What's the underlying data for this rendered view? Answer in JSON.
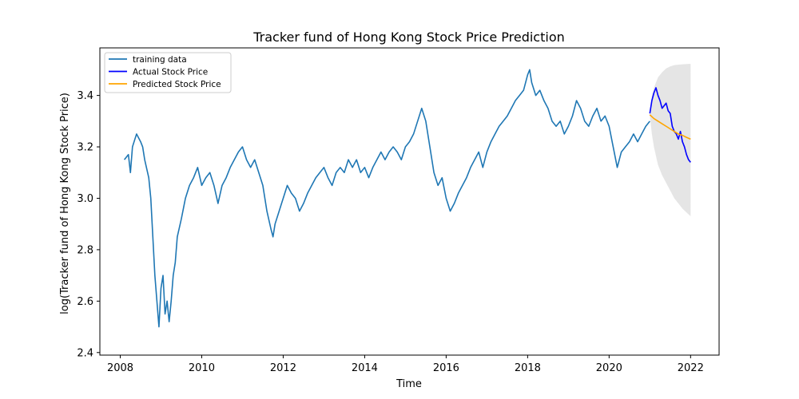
{
  "chart_data": {
    "type": "line",
    "title": "Tracker fund of Hong Kong Stock Price Prediction",
    "xlabel": "Time",
    "ylabel": "log(Tracker fund of Hong Kong Stock Price)",
    "xlim": [
      2007.5,
      2022.7
    ],
    "ylim": [
      2.39,
      3.585
    ],
    "x_ticks": [
      2008,
      2010,
      2012,
      2014,
      2016,
      2018,
      2020,
      2022
    ],
    "y_ticks": [
      2.4,
      2.6,
      2.8,
      3.0,
      3.2,
      3.4
    ],
    "y_tick_labels": [
      "2.4",
      "2.6",
      "2.8",
      "3.0",
      "3.2",
      "3.4"
    ],
    "grid": false,
    "legend_position": "top-left",
    "colors": {
      "training": "#1f77b4",
      "actual": "#0000ff",
      "predicted": "#ffa500",
      "confidence": "#d3d3d3"
    },
    "series": [
      {
        "name": "training data",
        "x": [
          2008.1,
          2008.2,
          2008.25,
          2008.3,
          2008.4,
          2008.5,
          2008.55,
          2008.6,
          2008.7,
          2008.75,
          2008.8,
          2008.85,
          2008.9,
          2008.95,
          2009.0,
          2009.05,
          2009.1,
          2009.15,
          2009.2,
          2009.25,
          2009.3,
          2009.35,
          2009.4,
          2009.5,
          2009.6,
          2009.7,
          2009.8,
          2009.9,
          2010.0,
          2010.1,
          2010.2,
          2010.3,
          2010.4,
          2010.5,
          2010.6,
          2010.7,
          2010.8,
          2010.9,
          2011.0,
          2011.1,
          2011.2,
          2011.3,
          2011.4,
          2011.5,
          2011.6,
          2011.7,
          2011.75,
          2011.8,
          2011.9,
          2012.0,
          2012.1,
          2012.2,
          2012.3,
          2012.4,
          2012.5,
          2012.6,
          2012.7,
          2012.8,
          2012.9,
          2013.0,
          2013.1,
          2013.2,
          2013.3,
          2013.4,
          2013.5,
          2013.6,
          2013.7,
          2013.8,
          2013.9,
          2014.0,
          2014.1,
          2014.2,
          2014.3,
          2014.4,
          2014.5,
          2014.6,
          2014.7,
          2014.8,
          2014.9,
          2015.0,
          2015.1,
          2015.2,
          2015.3,
          2015.4,
          2015.5,
          2015.6,
          2015.7,
          2015.8,
          2015.9,
          2016.0,
          2016.1,
          2016.2,
          2016.3,
          2016.4,
          2016.5,
          2016.6,
          2016.7,
          2016.8,
          2016.9,
          2017.0,
          2017.1,
          2017.2,
          2017.3,
          2017.4,
          2017.5,
          2017.6,
          2017.7,
          2017.8,
          2017.9,
          2018.0,
          2018.05,
          2018.1,
          2018.2,
          2018.3,
          2018.4,
          2018.5,
          2018.6,
          2018.7,
          2018.8,
          2018.9,
          2019.0,
          2019.1,
          2019.2,
          2019.3,
          2019.4,
          2019.5,
          2019.6,
          2019.7,
          2019.8,
          2019.9,
          2020.0,
          2020.1,
          2020.2,
          2020.25,
          2020.3,
          2020.4,
          2020.5,
          2020.6,
          2020.7,
          2020.8,
          2020.9,
          2021.0
        ],
        "y": [
          3.15,
          3.17,
          3.1,
          3.2,
          3.25,
          3.22,
          3.2,
          3.15,
          3.08,
          3.0,
          2.85,
          2.7,
          2.6,
          2.5,
          2.65,
          2.7,
          2.55,
          2.6,
          2.52,
          2.6,
          2.7,
          2.75,
          2.85,
          2.92,
          3.0,
          3.05,
          3.08,
          3.12,
          3.05,
          3.08,
          3.1,
          3.05,
          2.98,
          3.05,
          3.08,
          3.12,
          3.15,
          3.18,
          3.2,
          3.15,
          3.12,
          3.15,
          3.1,
          3.05,
          2.95,
          2.88,
          2.85,
          2.9,
          2.95,
          3.0,
          3.05,
          3.02,
          3.0,
          2.95,
          2.98,
          3.02,
          3.05,
          3.08,
          3.1,
          3.12,
          3.08,
          3.05,
          3.1,
          3.12,
          3.1,
          3.15,
          3.12,
          3.15,
          3.1,
          3.12,
          3.08,
          3.12,
          3.15,
          3.18,
          3.15,
          3.18,
          3.2,
          3.18,
          3.15,
          3.2,
          3.22,
          3.25,
          3.3,
          3.35,
          3.3,
          3.2,
          3.1,
          3.05,
          3.08,
          3.0,
          2.95,
          2.98,
          3.02,
          3.05,
          3.08,
          3.12,
          3.15,
          3.18,
          3.12,
          3.18,
          3.22,
          3.25,
          3.28,
          3.3,
          3.32,
          3.35,
          3.38,
          3.4,
          3.42,
          3.48,
          3.5,
          3.45,
          3.4,
          3.42,
          3.38,
          3.35,
          3.3,
          3.28,
          3.3,
          3.25,
          3.28,
          3.32,
          3.38,
          3.35,
          3.3,
          3.28,
          3.32,
          3.35,
          3.3,
          3.32,
          3.28,
          3.2,
          3.12,
          3.15,
          3.18,
          3.2,
          3.22,
          3.25,
          3.22,
          3.25,
          3.28,
          3.3
        ],
        "lines": true
      },
      {
        "name": "Actual Stock Price",
        "x": [
          2021.0,
          2021.05,
          2021.1,
          2021.15,
          2021.2,
          2021.25,
          2021.3,
          2021.35,
          2021.4,
          2021.45,
          2021.5,
          2021.55,
          2021.6,
          2021.65,
          2021.7,
          2021.75,
          2021.8,
          2021.85,
          2021.9,
          2021.95,
          2022.0
        ],
        "y": [
          3.33,
          3.38,
          3.41,
          3.43,
          3.4,
          3.38,
          3.35,
          3.36,
          3.37,
          3.34,
          3.33,
          3.28,
          3.26,
          3.25,
          3.23,
          3.26,
          3.22,
          3.2,
          3.17,
          3.15,
          3.14
        ]
      },
      {
        "name": "Predicted Stock Price",
        "x": [
          2021.0,
          2021.1,
          2021.2,
          2021.3,
          2021.4,
          2021.5,
          2021.6,
          2021.7,
          2021.8,
          2021.9,
          2022.0
        ],
        "y": [
          3.325,
          3.31,
          3.3,
          3.29,
          3.28,
          3.27,
          3.26,
          3.25,
          3.245,
          3.237,
          3.23
        ]
      }
    ],
    "confidence_band": {
      "x": [
        2021.0,
        2021.05,
        2021.1,
        2021.2,
        2021.3,
        2021.4,
        2021.5,
        2021.6,
        2021.7,
        2021.8,
        2021.9,
        2022.0
      ],
      "upper": [
        3.33,
        3.4,
        3.43,
        3.47,
        3.49,
        3.505,
        3.513,
        3.518,
        3.52,
        3.521,
        3.522,
        3.523
      ],
      "lower": [
        3.32,
        3.25,
        3.2,
        3.13,
        3.09,
        3.06,
        3.03,
        3.0,
        2.98,
        2.96,
        2.945,
        2.93
      ]
    }
  }
}
